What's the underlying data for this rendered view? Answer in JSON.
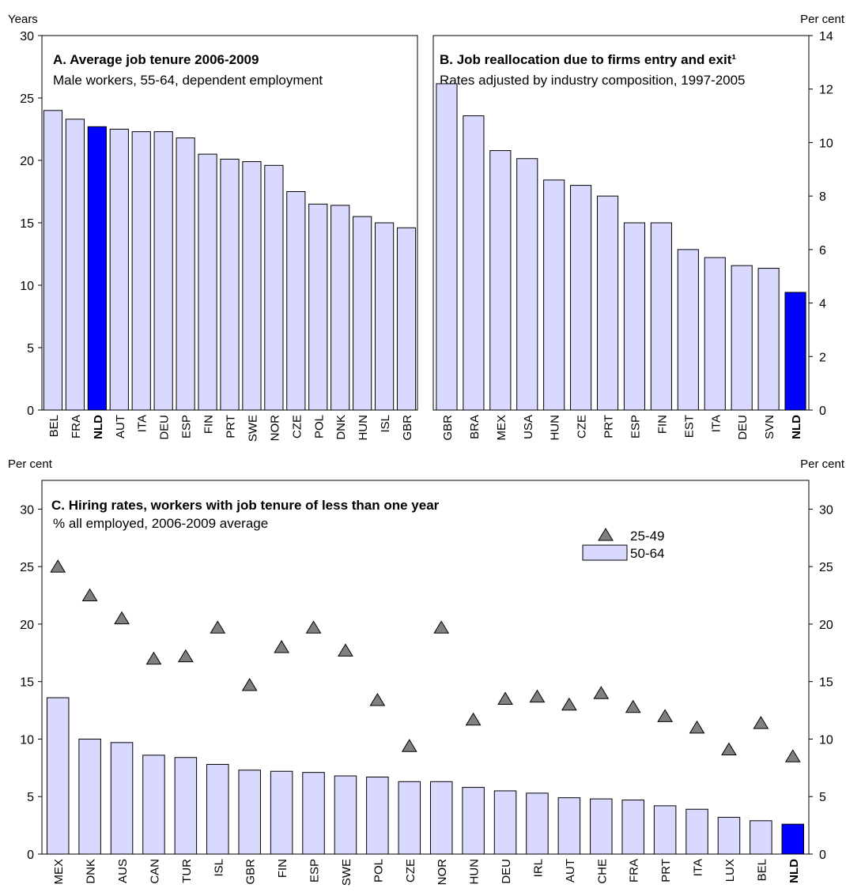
{
  "colors": {
    "bar": "#d9d9ff",
    "highlight": "#0000ff",
    "marker": "#808080",
    "stroke": "#000000"
  },
  "chart_data": [
    {
      "id": "A",
      "type": "bar",
      "title": "A. Average job tenure 2006-2009",
      "subtitle": "Male workers, 55-64, dependent employment",
      "ylabel": "Years",
      "ylim": [
        0,
        30
      ],
      "yticks": [
        0,
        5,
        10,
        15,
        20,
        25,
        30
      ],
      "y_axis_side": "left",
      "categories": [
        "BEL",
        "FRA",
        "NLD",
        "AUT",
        "ITA",
        "DEU",
        "ESP",
        "FIN",
        "PRT",
        "SWE",
        "NOR",
        "CZE",
        "POL",
        "DNK",
        "HUN",
        "ISL",
        "GBR"
      ],
      "values": [
        24.0,
        23.3,
        22.7,
        22.5,
        22.3,
        22.3,
        21.8,
        20.5,
        20.1,
        19.9,
        19.6,
        17.5,
        16.5,
        16.4,
        15.5,
        15.0,
        14.6
      ],
      "highlight": "NLD"
    },
    {
      "id": "B",
      "type": "bar",
      "title": "B. Job reallocation due to firms entry and exit¹",
      "subtitle": "Rates adjusted by industry composition, 1997-2005",
      "ylabel": "Per cent",
      "ylim": [
        0,
        14
      ],
      "yticks": [
        0,
        2,
        4,
        6,
        8,
        10,
        12,
        14
      ],
      "y_axis_side": "right",
      "categories": [
        "GBR",
        "BRA",
        "MEX",
        "USA",
        "HUN",
        "CZE",
        "PRT",
        "ESP",
        "FIN",
        "EST",
        "ITA",
        "DEU",
        "SVN",
        "NLD"
      ],
      "values": [
        12.2,
        11.0,
        9.7,
        9.4,
        8.6,
        8.4,
        8.0,
        7.0,
        7.0,
        6.0,
        5.7,
        5.4,
        5.3,
        4.4
      ],
      "highlight": "NLD"
    },
    {
      "id": "C",
      "type": "bar",
      "title": "C. Hiring rates, workers with job tenure of less than one year",
      "subtitle": "% all employed, 2006-2009 average",
      "ylabel_left": "Per cent",
      "ylabel_right": "Per cent",
      "ylim": [
        0,
        30
      ],
      "yticks": [
        0,
        5,
        10,
        15,
        20,
        25,
        30
      ],
      "legend_position": "top-right",
      "categories": [
        "MEX",
        "DNK",
        "AUS",
        "CAN",
        "TUR",
        "ISL",
        "GBR",
        "FIN",
        "ESP",
        "SWE",
        "POL",
        "CZE",
        "NOR",
        "HUN",
        "DEU",
        "IRL",
        "AUT",
        "CHE",
        "FRA",
        "PRT",
        "ITA",
        "LUX",
        "BEL",
        "NLD"
      ],
      "series": [
        {
          "name": "25-49",
          "kind": "triangle",
          "values": [
            25.0,
            22.5,
            20.5,
            17.0,
            17.2,
            19.7,
            14.7,
            18.0,
            19.7,
            17.7,
            13.4,
            9.4,
            19.7,
            11.7,
            13.5,
            13.7,
            13.0,
            14.0,
            12.8,
            12.0,
            11.0,
            9.1,
            11.4,
            8.5
          ]
        },
        {
          "name": "50-64",
          "kind": "bar",
          "values": [
            13.6,
            10.0,
            9.7,
            8.6,
            8.4,
            7.8,
            7.3,
            7.2,
            7.1,
            6.8,
            6.7,
            6.3,
            6.3,
            5.8,
            5.5,
            5.3,
            4.9,
            4.8,
            4.7,
            4.2,
            3.9,
            3.2,
            2.9,
            2.6
          ]
        }
      ],
      "highlight": "NLD"
    }
  ]
}
